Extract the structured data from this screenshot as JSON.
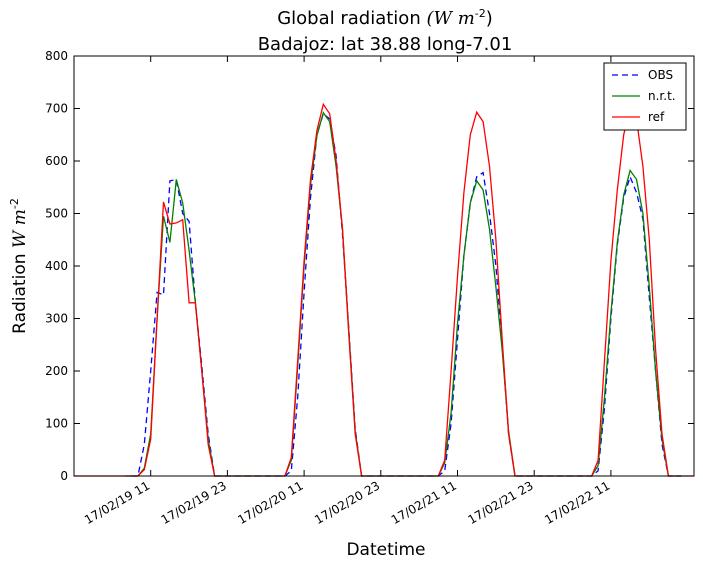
{
  "chart_data": {
    "type": "line",
    "title": "Global radiation (W m-2)",
    "title_line1_text": "Global radiation ",
    "title_line1_math": "(W m",
    "title_line1_sup": "-2",
    "title_line1_close": ")",
    "subtitle": "Badajoz: lat 38.88 long-7.01",
    "xlabel": "Datetime",
    "ylabel": "Radiation W m-2",
    "ylabel_text": "Radiation ",
    "ylabel_math": "W m",
    "ylabel_sup": "-2",
    "xlim": [
      "17/02/18 23",
      "17/02/23 00"
    ],
    "ylim": [
      0,
      800
    ],
    "yticks": [
      0,
      100,
      200,
      300,
      400,
      500,
      600,
      700,
      800
    ],
    "xticks": [
      {
        "label": "17/02/19 11",
        "t": "2017-02-19T11:00"
      },
      {
        "label": "17/02/19 23",
        "t": "2017-02-19T23:00"
      },
      {
        "label": "17/02/20 11",
        "t": "2017-02-20T11:00"
      },
      {
        "label": "17/02/20 23",
        "t": "2017-02-20T23:00"
      },
      {
        "label": "17/02/21 11",
        "t": "2017-02-21T11:00"
      },
      {
        "label": "17/02/21 23",
        "t": "2017-02-21T23:00"
      },
      {
        "label": "17/02/22 11",
        "t": "2017-02-22T11:00"
      }
    ],
    "grid": false,
    "legend_position": "top-right",
    "series": [
      {
        "name": "OBS",
        "color": "#0000ff",
        "style": "dashed",
        "points": [
          [
            "2017-02-19T08:00",
            0
          ],
          [
            "2017-02-19T09:00",
            0
          ],
          [
            "2017-02-19T10:00",
            60
          ],
          [
            "2017-02-19T11:00",
            200
          ],
          [
            "2017-02-19T12:00",
            350
          ],
          [
            "2017-02-19T13:00",
            345
          ],
          [
            "2017-02-19T14:00",
            562
          ],
          [
            "2017-02-19T15:00",
            565
          ],
          [
            "2017-02-19T16:00",
            500
          ],
          [
            "2017-02-19T17:00",
            485
          ],
          [
            "2017-02-19T18:00",
            330
          ],
          [
            "2017-02-19T19:00",
            210
          ],
          [
            "2017-02-19T20:00",
            80
          ],
          [
            "2017-02-19T21:00",
            0
          ],
          [
            "2017-02-19T22:00",
            0
          ],
          [
            "2017-02-20T07:00",
            0
          ],
          [
            "2017-02-20T08:00",
            0
          ],
          [
            "2017-02-20T09:00",
            10
          ],
          [
            "2017-02-20T10:00",
            150
          ],
          [
            "2017-02-20T11:00",
            350
          ],
          [
            "2017-02-20T12:00",
            530
          ],
          [
            "2017-02-20T13:00",
            650
          ],
          [
            "2017-02-20T14:00",
            690
          ],
          [
            "2017-02-20T15:00",
            680
          ],
          [
            "2017-02-20T16:00",
            610
          ],
          [
            "2017-02-20T17:00",
            460
          ],
          [
            "2017-02-20T18:00",
            280
          ],
          [
            "2017-02-20T19:00",
            90
          ],
          [
            "2017-02-20T20:00",
            0
          ],
          [
            "2017-02-20T21:00",
            0
          ],
          [
            "2017-02-21T07:00",
            0
          ],
          [
            "2017-02-21T08:00",
            0
          ],
          [
            "2017-02-21T09:00",
            10
          ],
          [
            "2017-02-21T10:00",
            100
          ],
          [
            "2017-02-21T11:00",
            260
          ],
          [
            "2017-02-21T12:00",
            420
          ],
          [
            "2017-02-21T13:00",
            520
          ],
          [
            "2017-02-21T14:00",
            570
          ],
          [
            "2017-02-21T15:00",
            578
          ],
          [
            "2017-02-21T16:00",
            500
          ],
          [
            "2017-02-21T17:00",
            400
          ],
          [
            "2017-02-21T18:00",
            250
          ],
          [
            "2017-02-21T19:00",
            80
          ],
          [
            "2017-02-21T20:00",
            0
          ],
          [
            "2017-02-21T21:00",
            0
          ],
          [
            "2017-02-22T07:00",
            0
          ],
          [
            "2017-02-22T08:00",
            0
          ],
          [
            "2017-02-22T09:00",
            10
          ],
          [
            "2017-02-22T10:00",
            130
          ],
          [
            "2017-02-22T11:00",
            300
          ],
          [
            "2017-02-22T12:00",
            440
          ],
          [
            "2017-02-22T13:00",
            530
          ],
          [
            "2017-02-22T14:00",
            570
          ],
          [
            "2017-02-22T15:00",
            540
          ],
          [
            "2017-02-22T16:00",
            490
          ],
          [
            "2017-02-22T17:00",
            340
          ],
          [
            "2017-02-22T18:00",
            200
          ],
          [
            "2017-02-22T19:00",
            60
          ],
          [
            "2017-02-22T20:00",
            0
          ],
          [
            "2017-02-22T21:00",
            0
          ],
          [
            "2017-02-22T22:00",
            0
          ]
        ]
      },
      {
        "name": "n.r.t.",
        "color": "#008000",
        "style": "solid",
        "points": [
          [
            "2017-02-19T07:00",
            0
          ],
          [
            "2017-02-19T08:00",
            0
          ],
          [
            "2017-02-19T09:00",
            0
          ],
          [
            "2017-02-19T10:00",
            15
          ],
          [
            "2017-02-19T11:00",
            80
          ],
          [
            "2017-02-19T12:00",
            300
          ],
          [
            "2017-02-19T13:00",
            495
          ],
          [
            "2017-02-19T14:00",
            445
          ],
          [
            "2017-02-19T15:00",
            565
          ],
          [
            "2017-02-19T16:00",
            520
          ],
          [
            "2017-02-19T17:00",
            430
          ],
          [
            "2017-02-19T18:00",
            330
          ],
          [
            "2017-02-19T19:00",
            200
          ],
          [
            "2017-02-19T20:00",
            70
          ],
          [
            "2017-02-19T21:00",
            0
          ],
          [
            "2017-02-19T22:00",
            0
          ],
          [
            "2017-02-19T23:00",
            0
          ],
          [
            "2017-02-20T07:00",
            0
          ],
          [
            "2017-02-20T08:00",
            0
          ],
          [
            "2017-02-20T09:00",
            30
          ],
          [
            "2017-02-20T10:00",
            210
          ],
          [
            "2017-02-20T11:00",
            400
          ],
          [
            "2017-02-20T12:00",
            555
          ],
          [
            "2017-02-20T13:00",
            648
          ],
          [
            "2017-02-20T14:00",
            692
          ],
          [
            "2017-02-20T15:00",
            675
          ],
          [
            "2017-02-20T16:00",
            590
          ],
          [
            "2017-02-20T17:00",
            470
          ],
          [
            "2017-02-20T18:00",
            275
          ],
          [
            "2017-02-20T19:00",
            85
          ],
          [
            "2017-02-20T20:00",
            0
          ],
          [
            "2017-02-20T21:00",
            0
          ],
          [
            "2017-02-21T07:00",
            0
          ],
          [
            "2017-02-21T08:00",
            0
          ],
          [
            "2017-02-21T09:00",
            25
          ],
          [
            "2017-02-21T10:00",
            120
          ],
          [
            "2017-02-21T11:00",
            290
          ],
          [
            "2017-02-21T12:00",
            420
          ],
          [
            "2017-02-21T13:00",
            520
          ],
          [
            "2017-02-21T14:00",
            562
          ],
          [
            "2017-02-21T15:00",
            545
          ],
          [
            "2017-02-21T16:00",
            470
          ],
          [
            "2017-02-21T17:00",
            360
          ],
          [
            "2017-02-21T18:00",
            240
          ],
          [
            "2017-02-21T19:00",
            85
          ],
          [
            "2017-02-21T20:00",
            0
          ],
          [
            "2017-02-21T21:00",
            0
          ],
          [
            "2017-02-22T07:00",
            0
          ],
          [
            "2017-02-22T08:00",
            0
          ],
          [
            "2017-02-22T09:00",
            20
          ],
          [
            "2017-02-22T10:00",
            150
          ],
          [
            "2017-02-22T11:00",
            310
          ],
          [
            "2017-02-22T12:00",
            445
          ],
          [
            "2017-02-22T13:00",
            535
          ],
          [
            "2017-02-22T14:00",
            582
          ],
          [
            "2017-02-22T15:00",
            565
          ],
          [
            "2017-02-22T16:00",
            500
          ],
          [
            "2017-02-22T17:00",
            360
          ],
          [
            "2017-02-22T18:00",
            200
          ],
          [
            "2017-02-22T19:00",
            70
          ],
          [
            "2017-02-22T20:00",
            0
          ],
          [
            "2017-02-22T21:00",
            0
          ],
          [
            "2017-02-22T22:00",
            0
          ]
        ]
      },
      {
        "name": "ref",
        "color": "#ff0000",
        "style": "solid",
        "points": [
          [
            "2017-02-18T23:00",
            0
          ],
          [
            "2017-02-19T08:00",
            0
          ],
          [
            "2017-02-19T09:00",
            0
          ],
          [
            "2017-02-19T10:00",
            12
          ],
          [
            "2017-02-19T11:00",
            70
          ],
          [
            "2017-02-19T12:00",
            300
          ],
          [
            "2017-02-19T13:00",
            522
          ],
          [
            "2017-02-19T14:00",
            480
          ],
          [
            "2017-02-19T15:00",
            482
          ],
          [
            "2017-02-19T16:00",
            488
          ],
          [
            "2017-02-19T17:00",
            330
          ],
          [
            "2017-02-19T18:00",
            330
          ],
          [
            "2017-02-19T19:00",
            200
          ],
          [
            "2017-02-19T20:00",
            60
          ],
          [
            "2017-02-19T21:00",
            0
          ],
          [
            "2017-02-19T22:00",
            0
          ],
          [
            "2017-02-19T23:00",
            0
          ],
          [
            "2017-02-20T07:00",
            0
          ],
          [
            "2017-02-20T08:00",
            0
          ],
          [
            "2017-02-20T09:00",
            35
          ],
          [
            "2017-02-20T10:00",
            220
          ],
          [
            "2017-02-20T11:00",
            410
          ],
          [
            "2017-02-20T12:00",
            565
          ],
          [
            "2017-02-20T13:00",
            658
          ],
          [
            "2017-02-20T14:00",
            708
          ],
          [
            "2017-02-20T15:00",
            690
          ],
          [
            "2017-02-20T16:00",
            600
          ],
          [
            "2017-02-20T17:00",
            470
          ],
          [
            "2017-02-20T18:00",
            270
          ],
          [
            "2017-02-20T19:00",
            80
          ],
          [
            "2017-02-20T20:00",
            0
          ],
          [
            "2017-02-20T21:00",
            0
          ],
          [
            "2017-02-21T07:00",
            0
          ],
          [
            "2017-02-21T08:00",
            0
          ],
          [
            "2017-02-21T09:00",
            30
          ],
          [
            "2017-02-21T10:00",
            200
          ],
          [
            "2017-02-21T11:00",
            380
          ],
          [
            "2017-02-21T12:00",
            540
          ],
          [
            "2017-02-21T13:00",
            650
          ],
          [
            "2017-02-21T14:00",
            693
          ],
          [
            "2017-02-21T15:00",
            675
          ],
          [
            "2017-02-21T16:00",
            590
          ],
          [
            "2017-02-21T17:00",
            450
          ],
          [
            "2017-02-21T18:00",
            260
          ],
          [
            "2017-02-21T19:00",
            80
          ],
          [
            "2017-02-21T20:00",
            0
          ],
          [
            "2017-02-21T21:00",
            0
          ],
          [
            "2017-02-22T07:00",
            0
          ],
          [
            "2017-02-22T08:00",
            0
          ],
          [
            "2017-02-22T09:00",
            30
          ],
          [
            "2017-02-22T10:00",
            220
          ],
          [
            "2017-02-22T11:00",
            410
          ],
          [
            "2017-02-22T12:00",
            545
          ],
          [
            "2017-02-22T13:00",
            650
          ],
          [
            "2017-02-22T14:00",
            700
          ],
          [
            "2017-02-22T15:00",
            680
          ],
          [
            "2017-02-22T16:00",
            590
          ],
          [
            "2017-02-22T17:00",
            450
          ],
          [
            "2017-02-22T18:00",
            240
          ],
          [
            "2017-02-22T19:00",
            80
          ],
          [
            "2017-02-22T20:00",
            0
          ],
          [
            "2017-02-22T21:00",
            0
          ],
          [
            "2017-02-23T00:00",
            0
          ]
        ]
      }
    ]
  }
}
